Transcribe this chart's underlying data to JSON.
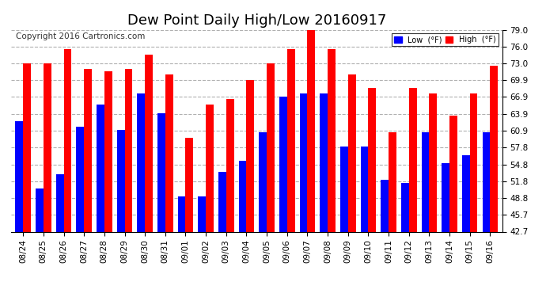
{
  "title": "Dew Point Daily High/Low 20160917",
  "copyright": "Copyright 2016 Cartronics.com",
  "legend_low": "Low  (°F)",
  "legend_high": "High  (°F)",
  "dates": [
    "08/24",
    "08/25",
    "08/26",
    "08/27",
    "08/28",
    "08/29",
    "08/30",
    "08/31",
    "09/01",
    "09/02",
    "09/03",
    "09/04",
    "09/05",
    "09/06",
    "09/07",
    "09/08",
    "09/09",
    "09/10",
    "09/11",
    "09/12",
    "09/13",
    "09/14",
    "09/15",
    "09/16"
  ],
  "highs": [
    73.0,
    73.0,
    75.5,
    72.0,
    71.5,
    72.0,
    74.5,
    71.0,
    59.5,
    65.5,
    66.5,
    70.0,
    73.0,
    75.5,
    79.5,
    75.5,
    71.0,
    68.5,
    60.5,
    68.5,
    67.5,
    63.5,
    67.5,
    72.5
  ],
  "lows": [
    62.5,
    50.5,
    53.0,
    61.5,
    65.5,
    61.0,
    67.5,
    64.0,
    49.0,
    49.0,
    53.5,
    55.5,
    60.5,
    67.0,
    67.5,
    67.5,
    58.0,
    58.0,
    52.0,
    51.5,
    60.5,
    55.0,
    56.5,
    60.5
  ],
  "ylim": [
    42.7,
    79.0
  ],
  "yticks": [
    42.7,
    45.7,
    48.8,
    51.8,
    54.8,
    57.8,
    60.9,
    63.9,
    66.9,
    69.9,
    73.0,
    76.0,
    79.0
  ],
  "background_color": "#ffffff",
  "bar_width": 0.38,
  "color_high": "#ff0000",
  "color_low": "#0000ff",
  "grid_color": "#b0b0b0",
  "title_fontsize": 13,
  "tick_fontsize": 7.5,
  "copyright_fontsize": 7.5
}
